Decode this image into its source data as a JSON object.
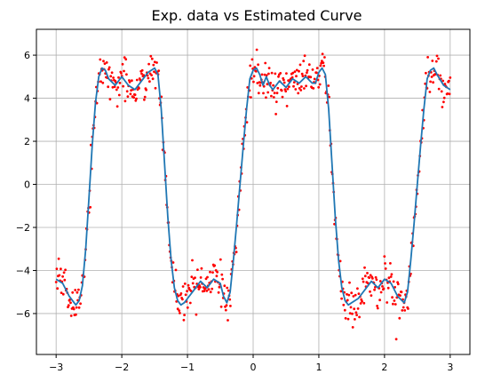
{
  "chart_data": {
    "type": "scatter",
    "title": "Exp. data vs Estimated Curve",
    "xlabel": "",
    "ylabel": "",
    "xlim": [
      -3.3,
      3.3
    ],
    "ylim": [
      -7.9,
      7.2
    ],
    "grid": true,
    "x_ticks": [
      -3,
      -2,
      -1,
      0,
      1,
      2,
      3
    ],
    "x_tick_labels": [
      "−3",
      "−2",
      "−1",
      "0",
      "1",
      "2",
      "3"
    ],
    "y_ticks": [
      -6,
      -4,
      -2,
      0,
      2,
      4,
      6
    ],
    "y_tick_labels": [
      "−6",
      "−4",
      "−2",
      "0",
      "2",
      "4",
      "6"
    ],
    "estimated_curve": {
      "color": "#1f77b4",
      "x": [
        -3.0,
        -2.9,
        -2.8,
        -2.7,
        -2.65,
        -2.6,
        -2.55,
        -2.5,
        -2.45,
        -2.4,
        -2.35,
        -2.3,
        -2.25,
        -2.2,
        -2.1,
        -2.0,
        -1.9,
        -1.8,
        -1.7,
        -1.6,
        -1.5,
        -1.45,
        -1.4,
        -1.35,
        -1.3,
        -1.25,
        -1.2,
        -1.15,
        -1.1,
        -1.05,
        -1.0,
        -0.9,
        -0.8,
        -0.7,
        -0.6,
        -0.5,
        -0.45,
        -0.4,
        -0.35,
        -0.3,
        -0.25,
        -0.2,
        -0.15,
        -0.1,
        -0.05,
        0.0,
        0.05,
        0.1,
        0.15,
        0.2,
        0.25,
        0.3,
        0.4,
        0.5,
        0.6,
        0.7,
        0.8,
        0.9,
        0.95,
        1.0,
        1.05,
        1.1,
        1.15,
        1.2,
        1.25,
        1.3,
        1.35,
        1.4,
        1.45,
        1.5,
        1.6,
        1.7,
        1.8,
        1.9,
        2.0,
        2.1,
        2.2,
        2.3,
        2.35,
        2.4,
        2.45,
        2.5,
        2.55,
        2.6,
        2.65,
        2.7,
        2.75,
        2.8,
        2.9,
        3.0
      ],
      "y": [
        -4.4,
        -4.6,
        -5.2,
        -5.6,
        -5.4,
        -4.7,
        -3.0,
        -0.6,
        1.8,
        3.8,
        5.0,
        5.4,
        5.3,
        4.9,
        4.6,
        5.0,
        4.6,
        4.4,
        4.8,
        5.2,
        5.4,
        5.1,
        3.5,
        1.0,
        -1.5,
        -3.5,
        -4.8,
        -5.4,
        -5.6,
        -5.5,
        -5.3,
        -4.9,
        -4.5,
        -4.8,
        -4.4,
        -4.6,
        -5.2,
        -5.5,
        -5.0,
        -3.5,
        -1.8,
        0.0,
        1.8,
        3.5,
        4.9,
        5.3,
        5.4,
        5.1,
        4.6,
        5.0,
        4.6,
        4.4,
        4.8,
        4.5,
        4.9,
        4.7,
        5.0,
        4.7,
        4.7,
        5.2,
        5.4,
        5.1,
        3.5,
        1.0,
        -1.5,
        -3.5,
        -4.8,
        -5.4,
        -5.6,
        -5.5,
        -5.3,
        -4.9,
        -4.5,
        -4.8,
        -4.4,
        -4.6,
        -5.2,
        -5.5,
        -5.0,
        -3.5,
        -1.8,
        0.0,
        1.8,
        3.5,
        4.9,
        5.3,
        5.4,
        5.1,
        4.6,
        4.4
      ]
    },
    "exp_data": {
      "color": "#ff0000",
      "points": 600,
      "noise_std": 0.45
    }
  }
}
